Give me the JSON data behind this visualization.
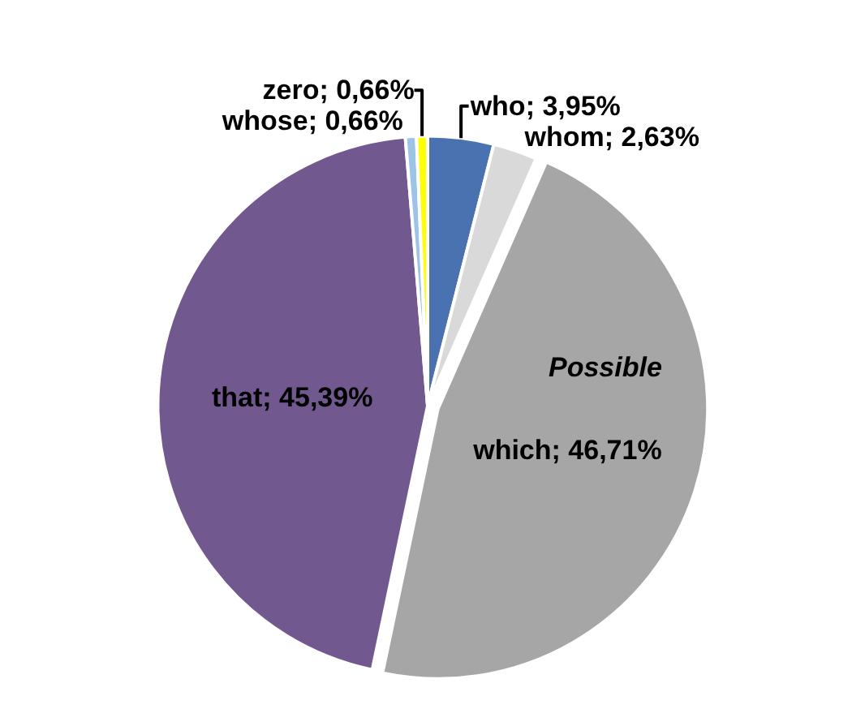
{
  "chart_data": {
    "type": "pie",
    "categories": [
      "who",
      "whom",
      "which",
      "that",
      "whose",
      "zero"
    ],
    "values": [
      3.95,
      2.63,
      46.71,
      45.39,
      0.66,
      0.66
    ],
    "value_labels": [
      "3,95%",
      "2,63%",
      "46,71%",
      "45,39%",
      "0,66%",
      "0,66%"
    ],
    "colors": [
      "#4a72b0",
      "#d9d9d9",
      "#a6a6a6",
      "#71588f",
      "#9dc3e6",
      "#ffff00"
    ],
    "annotations": [
      "Possible"
    ],
    "legend": false
  }
}
